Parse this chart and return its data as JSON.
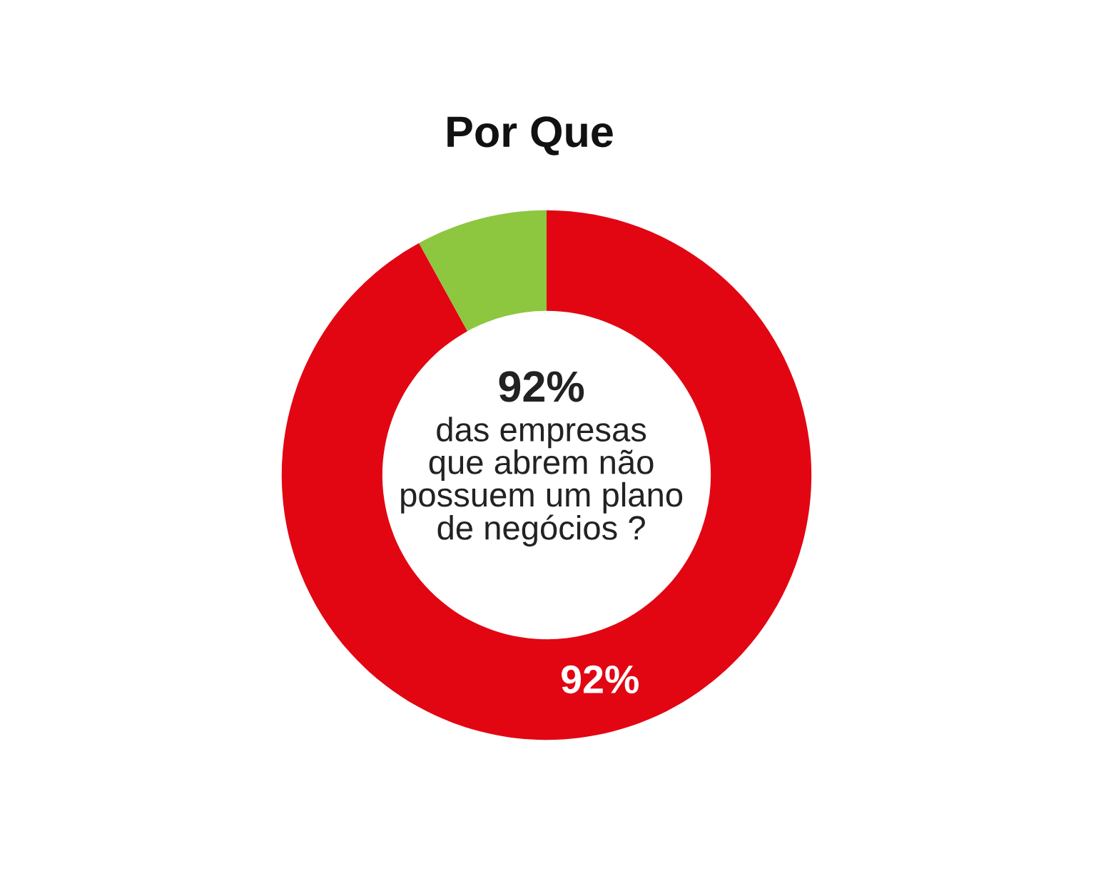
{
  "chart_data": {
    "type": "donut",
    "title": "Por Que",
    "categories": [
      null,
      null
    ],
    "values": [
      92,
      8
    ],
    "colors": [
      "#e20613",
      "#8dc63f"
    ],
    "value_labels": [
      "92%",
      null
    ],
    "annotations": [
      "92%",
      "das empresas\nque abrem não\npossuem um plano\nde negócios ?"
    ]
  }
}
